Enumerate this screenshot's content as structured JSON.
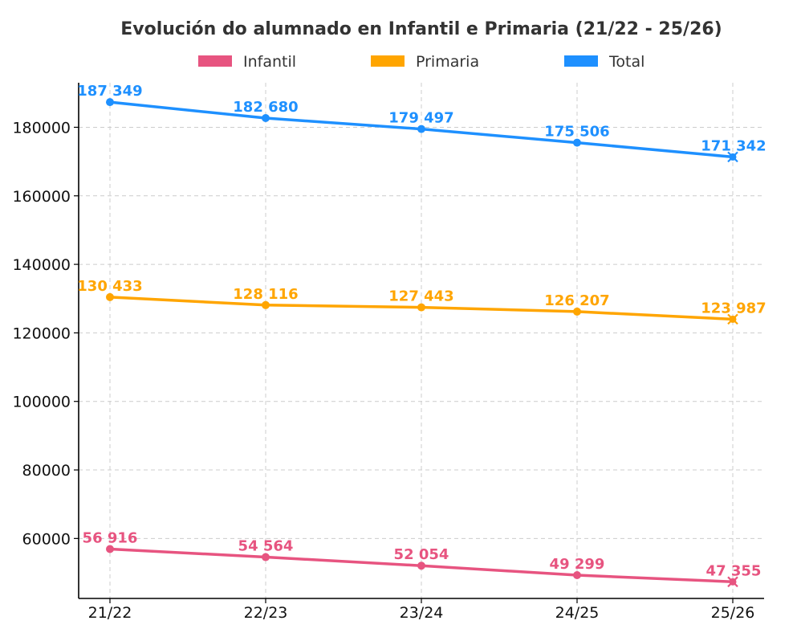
{
  "chart_data": {
    "type": "line",
    "title": "Evolución do alumnado en Infantil e Primaria (21/22 - 25/26)",
    "xlabel": "",
    "ylabel": "",
    "categories": [
      "21/22",
      "22/23",
      "23/24",
      "24/25",
      "25/26"
    ],
    "ylim": [
      42500,
      193000
    ],
    "yticks": [
      60000,
      80000,
      100000,
      120000,
      140000,
      160000,
      180000
    ],
    "grid": true,
    "legend_position": "top-center",
    "series": [
      {
        "name": "Infantil",
        "color": "#E75480",
        "values": [
          56916,
          54564,
          52054,
          49299,
          47355
        ],
        "labels": [
          "56 916",
          "54 564",
          "52 054",
          "49 299",
          "47 355"
        ]
      },
      {
        "name": "Primaria",
        "color": "#FFA500",
        "values": [
          130433,
          128116,
          127443,
          126207,
          123987
        ],
        "labels": [
          "130 433",
          "128 116",
          "127 443",
          "126 207",
          "123 987"
        ]
      },
      {
        "name": "Total",
        "color": "#1E90FF",
        "values": [
          187349,
          182680,
          179497,
          175506,
          171342
        ],
        "labels": [
          "187 349",
          "182 680",
          "179 497",
          "175 506",
          "171 342"
        ]
      }
    ],
    "last_point_marker": "x"
  }
}
